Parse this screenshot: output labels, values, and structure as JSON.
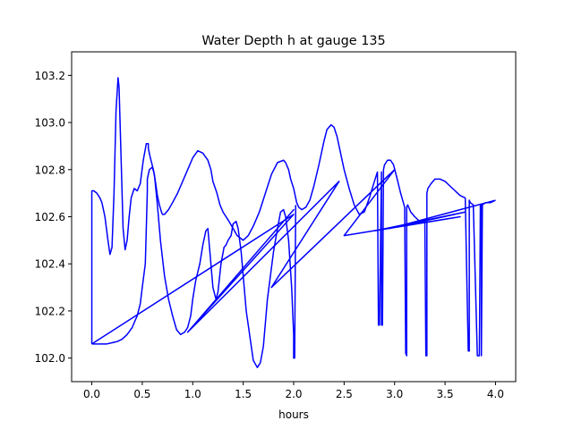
{
  "chart_data": {
    "type": "line",
    "title": "Water Depth h at gauge 135",
    "xlabel": "hours",
    "ylabel": "",
    "xlim": [
      -0.2,
      4.2
    ],
    "ylim": [
      101.9,
      103.3
    ],
    "xticks": [
      0.0,
      0.5,
      1.0,
      1.5,
      2.0,
      2.5,
      3.0,
      3.5,
      4.0
    ],
    "xtick_labels": [
      "0.0",
      "0.5",
      "1.0",
      "1.5",
      "2.0",
      "2.5",
      "3.0",
      "3.5",
      "4.0"
    ],
    "yticks": [
      102.0,
      102.2,
      102.4,
      102.6,
      102.8,
      103.0,
      103.2
    ],
    "ytick_labels": [
      "102.0",
      "102.2",
      "102.4",
      "102.6",
      "102.8",
      "103.0",
      "103.2"
    ],
    "grid": false,
    "series_color": "#0000ff",
    "series": [
      {
        "x": [
          0.0,
          0.0,
          0.02,
          0.05,
          0.08,
          0.1,
          0.13,
          0.16,
          0.18,
          0.2,
          0.22,
          0.24,
          0.26,
          0.27,
          0.29,
          0.31,
          0.33,
          0.35,
          0.37,
          0.39,
          0.42,
          0.45,
          0.48,
          0.51,
          0.54,
          0.56,
          0.56,
          0.58,
          0.61,
          0.63,
          0.65,
          0.67,
          0.69,
          0.7,
          0.72,
          0.74,
          0.76,
          0.8,
          0.85,
          0.9,
          0.95,
          1.0,
          1.05,
          1.1,
          1.15,
          1.18,
          1.2,
          1.24,
          1.27,
          1.3,
          1.33,
          1.36,
          1.4,
          1.44,
          1.5,
          1.55,
          1.6,
          1.66,
          1.72,
          1.78,
          1.84,
          1.9,
          1.92,
          1.95,
          1.97,
          2.0,
          2.02,
          2.03,
          2.05,
          2.08,
          2.12,
          2.16,
          2.2,
          2.25,
          2.3,
          2.33,
          2.37,
          2.4,
          2.43,
          2.46,
          2.5,
          2.55,
          2.6,
          2.65,
          2.7,
          2.75,
          2.8,
          2.83,
          2.84,
          2.85,
          2.87,
          2.87,
          2.88,
          2.89,
          2.9,
          2.93,
          2.96,
          2.99,
          3.02,
          3.06,
          3.1,
          3.11,
          3.12,
          3.12,
          3.13,
          3.16,
          3.2,
          3.25,
          3.3,
          3.31,
          3.32,
          3.32,
          3.33,
          3.36,
          3.4,
          3.45,
          3.5,
          3.55,
          3.6,
          3.65,
          3.7,
          3.73,
          3.74,
          3.74,
          3.75,
          3.78,
          3.82,
          3.83,
          3.84,
          3.85,
          3.86,
          3.86,
          3.87,
          3.9,
          3.95,
          4.0
        ],
        "y": [
          102.06,
          102.71,
          102.71,
          102.7,
          102.68,
          102.66,
          102.6,
          102.5,
          102.44,
          102.47,
          102.7,
          103.05,
          103.19,
          103.15,
          102.85,
          102.55,
          102.46,
          102.5,
          102.6,
          102.68,
          102.72,
          102.71,
          102.74,
          102.84,
          102.91,
          102.91,
          102.89,
          102.85,
          102.8,
          102.75,
          102.69,
          102.65,
          102.62,
          102.61,
          102.61,
          102.62,
          102.63,
          102.66,
          102.7,
          102.75,
          102.8,
          102.85,
          102.88,
          102.87,
          102.84,
          102.8,
          102.75,
          102.7,
          102.65,
          102.62,
          102.6,
          102.58,
          102.55,
          102.52,
          102.5,
          102.52,
          102.56,
          102.62,
          102.7,
          102.78,
          102.83,
          102.84,
          102.83,
          102.8,
          102.76,
          102.72,
          102.68,
          102.66,
          102.64,
          102.63,
          102.64,
          102.67,
          102.73,
          102.82,
          102.92,
          102.97,
          102.99,
          102.98,
          102.94,
          102.88,
          102.8,
          102.72,
          102.65,
          102.61,
          102.62,
          102.68,
          102.75,
          102.79,
          102.14,
          102.14,
          102.79,
          102.14,
          102.14,
          102.8,
          102.82,
          102.84,
          102.84,
          102.82,
          102.77,
          102.7,
          102.64,
          102.02,
          102.01,
          102.64,
          102.65,
          102.62,
          102.6,
          102.58,
          102.58,
          102.01,
          102.01,
          102.7,
          102.72,
          102.74,
          102.76,
          102.76,
          102.75,
          102.73,
          102.71,
          102.69,
          102.68,
          102.03,
          102.03,
          102.67,
          102.66,
          102.65,
          102.01,
          102.01,
          102.01,
          102.65,
          102.65,
          102.01,
          102.65,
          102.66,
          102.66,
          102.67
        ]
      },
      {
        "x": [
          0.0,
          0.05,
          0.15,
          0.25,
          0.3,
          0.35,
          0.4,
          0.45,
          0.48,
          0.5,
          0.53,
          0.54,
          0.55,
          0.55,
          0.57,
          0.6,
          0.62,
          0.65,
          0.68,
          0.72,
          0.76,
          0.8,
          0.84,
          0.88,
          0.92,
          0.95,
          0.98,
          1.0,
          1.03,
          1.07,
          1.1,
          1.13,
          1.15,
          1.16,
          1.18,
          1.2,
          1.23,
          1.25,
          1.28,
          1.31,
          1.33,
          1.35,
          1.38,
          1.4,
          1.43,
          1.45,
          1.48,
          1.5,
          1.53,
          1.57,
          1.6,
          1.64,
          1.67,
          1.7,
          1.72,
          1.74,
          1.77,
          1.8,
          1.84,
          1.87,
          1.9,
          1.92,
          1.95,
          1.98,
          2.0,
          2.0,
          2.01,
          2.02,
          2.02
        ],
        "y": [
          102.06,
          102.06,
          102.06,
          102.07,
          102.08,
          102.1,
          102.13,
          102.18,
          102.23,
          102.3,
          102.4,
          102.55,
          102.71,
          102.76,
          102.8,
          102.81,
          102.78,
          102.65,
          102.5,
          102.35,
          102.25,
          102.18,
          102.12,
          102.1,
          102.11,
          102.13,
          102.18,
          102.25,
          102.33,
          102.4,
          102.48,
          102.54,
          102.55,
          102.5,
          102.4,
          102.3,
          102.25,
          102.28,
          102.4,
          102.47,
          102.48,
          102.5,
          102.52,
          102.57,
          102.58,
          102.55,
          102.45,
          102.35,
          102.2,
          102.08,
          101.99,
          101.96,
          101.98,
          102.05,
          102.15,
          102.25,
          102.35,
          102.45,
          102.55,
          102.62,
          102.63,
          102.6,
          102.5,
          102.3,
          102.1,
          102.0,
          102.0,
          102.65,
          102.65
        ]
      },
      {
        "x": [
          0.0,
          2.0,
          0.95,
          2.0,
          0.95,
          2.45,
          1.78,
          2.95,
          1.78,
          3.0,
          2.5,
          3.65,
          2.8,
          3.7,
          2.95,
          4.0
        ],
        "y": [
          102.06,
          102.61,
          102.11,
          102.63,
          102.11,
          102.75,
          102.3,
          102.78,
          102.3,
          102.8,
          102.52,
          102.6,
          102.54,
          102.62,
          102.55,
          102.67
        ]
      }
    ]
  }
}
